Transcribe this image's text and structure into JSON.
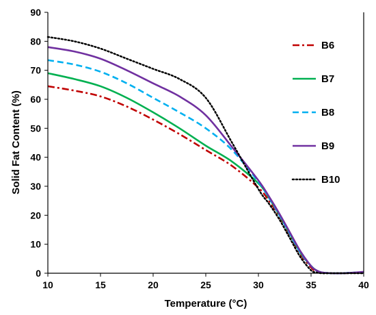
{
  "chart_data": {
    "type": "line",
    "title": "",
    "xlabel": "Temperature (°C)",
    "ylabel": "Solid Fat Content (%)",
    "xlim": [
      10,
      40
    ],
    "ylim": [
      0,
      90
    ],
    "xticks": [
      10,
      15,
      20,
      25,
      30,
      35,
      40
    ],
    "yticks": [
      0,
      10,
      20,
      30,
      40,
      50,
      60,
      70,
      80,
      90
    ],
    "grid": false,
    "legend_position": "right",
    "series": [
      {
        "name": "B6",
        "color": "#c00000",
        "dash": "dash-dot",
        "x": [
          10,
          12.5,
          15,
          17.5,
          20,
          22.5,
          25,
          27.5,
          30,
          31,
          32,
          33,
          34,
          35,
          35.5,
          36,
          37,
          38,
          39,
          40
        ],
        "y": [
          64.5,
          63,
          61,
          57.5,
          53,
          48,
          42.5,
          37,
          29.5,
          25,
          19.5,
          13,
          6.5,
          2,
          0.5,
          0.2,
          0,
          0,
          0.1,
          0.2
        ]
      },
      {
        "name": "B7",
        "color": "#00b050",
        "dash": "solid",
        "x": [
          10,
          12.5,
          15,
          17.5,
          20,
          22.5,
          25,
          27.5,
          30,
          31,
          32,
          33,
          34,
          35,
          35.5,
          36,
          37,
          38,
          39,
          40
        ],
        "y": [
          69,
          67,
          64.5,
          60.5,
          55.5,
          50,
          44,
          38.5,
          31,
          26,
          20,
          13.5,
          7,
          2.5,
          1,
          0.3,
          0,
          0,
          0.2,
          0.3
        ]
      },
      {
        "name": "B8",
        "color": "#00b0f0",
        "dash": "dashed",
        "x": [
          10,
          12.5,
          15,
          17.5,
          20,
          22.5,
          25,
          27.5,
          30,
          31,
          32,
          33,
          34,
          35,
          35.5,
          36,
          37,
          38,
          39,
          40
        ],
        "y": [
          73.5,
          72,
          69.5,
          65.5,
          60.5,
          55.5,
          50,
          42.5,
          31.5,
          26,
          20,
          13.5,
          7,
          2.5,
          1,
          0.3,
          0,
          0,
          0.2,
          0.3
        ]
      },
      {
        "name": "B9",
        "color": "#7030a0",
        "dash": "solid",
        "x": [
          10,
          12.5,
          15,
          17.5,
          20,
          22.5,
          25,
          27.5,
          30,
          31,
          32,
          33,
          34,
          35,
          35.5,
          36,
          37,
          38,
          39,
          40
        ],
        "y": [
          78,
          76.5,
          74,
          70,
          65.5,
          61,
          54.5,
          43.5,
          32,
          26.5,
          20.5,
          14,
          7.5,
          2.5,
          1,
          0.3,
          0,
          0,
          0.2,
          0.5
        ]
      },
      {
        "name": "B10",
        "color": "#000000",
        "dash": "dotted",
        "x": [
          10,
          12.5,
          15,
          17.5,
          20,
          22.5,
          25,
          27.5,
          30,
          31,
          32,
          33,
          34,
          35,
          35.5,
          36,
          37,
          38,
          39,
          40
        ],
        "y": [
          81.5,
          80,
          77.5,
          74,
          70.5,
          67,
          60.5,
          45,
          29,
          24,
          18.5,
          12,
          5.5,
          1,
          0.3,
          0,
          0,
          0,
          0,
          0
        ]
      }
    ]
  }
}
